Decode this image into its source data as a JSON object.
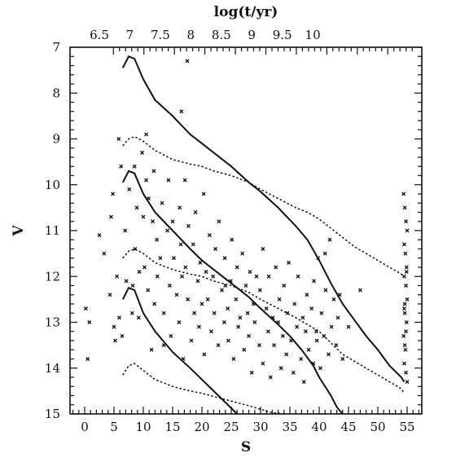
{
  "chart_data": {
    "type": "scatter",
    "title": "",
    "xlabel": "S",
    "ylabel": "V",
    "top_axis_label": "log(t/yr)",
    "xlim": [
      -2.5,
      57.5
    ],
    "ylim": [
      15,
      7
    ],
    "x_ticks": [
      0,
      5,
      10,
      15,
      20,
      25,
      30,
      35,
      40,
      45,
      50,
      55
    ],
    "x_tick_labels": [
      "0",
      "5",
      "10",
      "15",
      "20",
      "25",
      "30",
      "35",
      "40",
      "45",
      "50",
      "55"
    ],
    "y_ticks": [
      7,
      8,
      9,
      10,
      11,
      12,
      13,
      14,
      15
    ],
    "y_tick_labels": [
      "7",
      "8",
      "9",
      "10",
      "11",
      "12",
      "13",
      "14",
      "15"
    ],
    "top_ticks_s": [
      4.9,
      10.1,
      15.3,
      20.5,
      25.7,
      30.9,
      36.1,
      41.3,
      46.5,
      51.7
    ],
    "top_tick_labels": [
      "6.5",
      "7",
      "7.5",
      "8",
      "8.5",
      "9",
      "9.5",
      "10"
    ],
    "top_tick_label_s": [
      2.5,
      7.7,
      12.9,
      18.1,
      23.3,
      28.5,
      33.7,
      38.9
    ],
    "grid": false,
    "series": [
      {
        "style": "solid",
        "x": [
          6.5,
          7.5,
          8.5,
          10,
          12,
          15,
          18,
          20,
          22,
          25,
          28,
          30,
          33,
          36,
          38,
          40,
          42,
          44,
          46,
          48,
          50,
          52,
          54,
          54.5
        ],
        "y": [
          7.45,
          7.2,
          7.25,
          7.7,
          8.15,
          8.5,
          8.9,
          9.1,
          9.3,
          9.6,
          9.95,
          10.15,
          10.5,
          10.9,
          11.2,
          11.65,
          12.15,
          12.6,
          12.95,
          13.3,
          13.6,
          13.95,
          14.2,
          14.3
        ]
      },
      {
        "style": "solid",
        "x": [
          6.5,
          7.5,
          8.5,
          10,
          12,
          15,
          18,
          20,
          22,
          25,
          28,
          30,
          33,
          35,
          37,
          39,
          40,
          42,
          43,
          44
        ],
        "y": [
          9.95,
          9.7,
          9.75,
          10.2,
          10.6,
          11.0,
          11.4,
          11.65,
          11.85,
          12.15,
          12.45,
          12.7,
          13.05,
          13.3,
          13.6,
          13.95,
          14.2,
          14.6,
          14.85,
          15.0
        ]
      },
      {
        "style": "solid",
        "x": [
          6.5,
          7.5,
          8.5,
          10,
          12,
          15,
          18,
          20,
          22,
          24,
          26
        ],
        "y": [
          12.5,
          12.25,
          12.3,
          12.8,
          13.2,
          13.65,
          14.0,
          14.25,
          14.5,
          14.75,
          15.0
        ]
      },
      {
        "style": "dashed",
        "x": [
          6.5,
          7.5,
          8.5,
          10,
          12,
          15,
          18,
          20,
          22,
          25,
          28,
          30,
          33,
          36,
          38,
          40,
          42,
          44,
          46,
          48,
          50,
          52,
          54,
          54.5
        ],
        "y": [
          9.15,
          9.0,
          8.95,
          9.05,
          9.25,
          9.45,
          9.55,
          9.6,
          9.7,
          9.8,
          9.95,
          10.1,
          10.3,
          10.5,
          10.6,
          10.75,
          10.95,
          11.15,
          11.35,
          11.5,
          11.65,
          11.8,
          11.95,
          12.0
        ]
      },
      {
        "style": "dashed",
        "x": [
          6.5,
          7.5,
          8.5,
          10,
          12,
          15,
          18,
          20,
          22,
          25,
          28,
          30,
          33,
          36,
          38,
          40,
          42,
          44,
          46,
          48,
          50,
          52,
          54,
          54.5
        ],
        "y": [
          11.6,
          11.45,
          11.4,
          11.5,
          11.7,
          11.85,
          11.95,
          12.0,
          12.1,
          12.2,
          12.35,
          12.5,
          12.7,
          12.9,
          13.05,
          13.2,
          13.45,
          13.7,
          13.85,
          14.0,
          14.15,
          14.3,
          14.45,
          14.55
        ]
      },
      {
        "style": "dashed",
        "x": [
          6.5,
          7.5,
          8.5,
          10,
          12,
          15,
          18,
          20,
          22,
          25,
          28,
          30,
          32,
          34
        ],
        "y": [
          14.15,
          13.95,
          13.9,
          14.05,
          14.25,
          14.4,
          14.5,
          14.55,
          14.62,
          14.72,
          14.82,
          14.9,
          14.97,
          15.0
        ]
      }
    ],
    "points": {
      "x": [
        0.2,
        0.5,
        0.8,
        2.5,
        3.3,
        4.3,
        4.5,
        4.8,
        5.0,
        5.2,
        5.5,
        5.8,
        5.9,
        6.2,
        6.4,
        6.9,
        7.1,
        7.6,
        8.1,
        8.2,
        8.5,
        8.6,
        8.9,
        9.2,
        9.3,
        9.8,
        10.0,
        10.2,
        10.5,
        10.8,
        10.9,
        11.4,
        11.6,
        11.8,
        11.9,
        12.3,
        12.4,
        12.9,
        13.2,
        13.5,
        13.5,
        14.1,
        14.3,
        14.5,
        14.7,
        15.0,
        15.2,
        15.7,
        16.1,
        16.2,
        16.4,
        16.6,
        16.8,
        17.1,
        17.2,
        17.6,
        17.7,
        18.2,
        18.5,
        18.7,
        18.9,
        19.3,
        19.5,
        19.7,
        20.0,
        20.3,
        20.4,
        20.7,
        21.0,
        21.3,
        21.6,
        21.9,
        22.1,
        22.3,
        22.8,
        22.9,
        23.4,
        23.8,
        23.9,
        24.4,
        24.5,
        24.9,
        25.1,
        25.4,
        25.8,
        26.0,
        26.2,
        26.5,
        26.9,
        27.2,
        27.5,
        27.8,
        28.0,
        28.2,
        28.5,
        28.8,
        29.0,
        29.3,
        29.8,
        29.9,
        30.4,
        30.4,
        31.0,
        31.3,
        31.4,
        31.7,
        32.1,
        32.3,
        32.6,
        33.0,
        33.2,
        33.5,
        33.8,
        34.0,
        34.4,
        34.6,
        34.8,
        35.2,
        35.6,
        35.8,
        36.2,
        36.4,
        36.9,
        37.2,
        37.4,
        37.7,
        37.9,
        38.2,
        38.7,
        39.0,
        39.1,
        39.6,
        39.8,
        40.2,
        40.4,
        40.8,
        41.1,
        41.6,
        41.8,
        42.1,
        42.5,
        42.9,
        43.2,
        43.5,
        44.0,
        45.0,
        47.0,
        54.4,
        54.6,
        54.8,
        55.0,
        54.5,
        54.7,
        54.9,
        54.5,
        54.8,
        55.0,
        54.6,
        54.9,
        54.4,
        54.7,
        54.5,
        54.8,
        55.0,
        54.6,
        54.9,
        54.5,
        54.8,
        54.6,
        17.5,
        16.5,
        39.5,
        41.0,
        24.0,
        10.5
      ],
      "y": [
        12.7,
        13.8,
        13.0,
        11.1,
        11.5,
        12.4,
        10.7,
        10.2,
        13.1,
        13.4,
        12.0,
        9.0,
        12.9,
        9.6,
        13.3,
        11.0,
        12.1,
        10.1,
        12.8,
        12.2,
        9.6,
        11.4,
        10.5,
        12.9,
        11.9,
        9.3,
        10.7,
        11.8,
        9.9,
        12.3,
        10.3,
        13.6,
        10.8,
        9.7,
        12.6,
        11.2,
        12.0,
        11.6,
        10.4,
        12.8,
        13.5,
        11.0,
        9.9,
        12.2,
        13.3,
        10.8,
        11.6,
        12.4,
        13.0,
        10.5,
        11.3,
        12.0,
        13.8,
        9.9,
        11.8,
        12.5,
        10.9,
        13.4,
        11.3,
        12.8,
        10.6,
        12.1,
        13.1,
        11.7,
        12.6,
        10.2,
        13.7,
        11.9,
        12.5,
        11.1,
        13.2,
        12.0,
        12.8,
        11.4,
        13.5,
        10.8,
        12.3,
        13.0,
        11.6,
        12.7,
        13.4,
        12.1,
        11.2,
        13.8,
        12.5,
        11.8,
        13.1,
        12.9,
        11.5,
        13.6,
        12.2,
        12.8,
        13.3,
        11.9,
        14.1,
        12.6,
        13.0,
        12.0,
        13.5,
        12.3,
        11.4,
        13.9,
        12.7,
        13.2,
        12.0,
        14.2,
        12.9,
        13.5,
        11.8,
        13.0,
        12.5,
        14.0,
        13.3,
        12.2,
        13.7,
        12.8,
        11.7,
        13.4,
        14.1,
        12.6,
        13.1,
        12.0,
        13.8,
        12.9,
        14.3,
        13.2,
        12.4,
        13.6,
        12.7,
        13.9,
        12.1,
        13.4,
        11.6,
        14.0,
        12.8,
        13.3,
        12.3,
        13.7,
        11.2,
        13.1,
        12.5,
        13.5,
        12.9,
        12.4,
        13.8,
        13.1,
        12.3,
        10.2,
        10.5,
        10.8,
        11.0,
        11.3,
        11.5,
        11.8,
        12.0,
        12.2,
        12.5,
        12.8,
        13.0,
        13.3,
        13.6,
        13.9,
        14.1,
        14.3,
        12.6,
        11.9,
        12.7,
        13.2,
        13.5,
        7.3,
        8.4,
        13.2,
        11.5,
        12.2,
        8.9
      ]
    }
  }
}
